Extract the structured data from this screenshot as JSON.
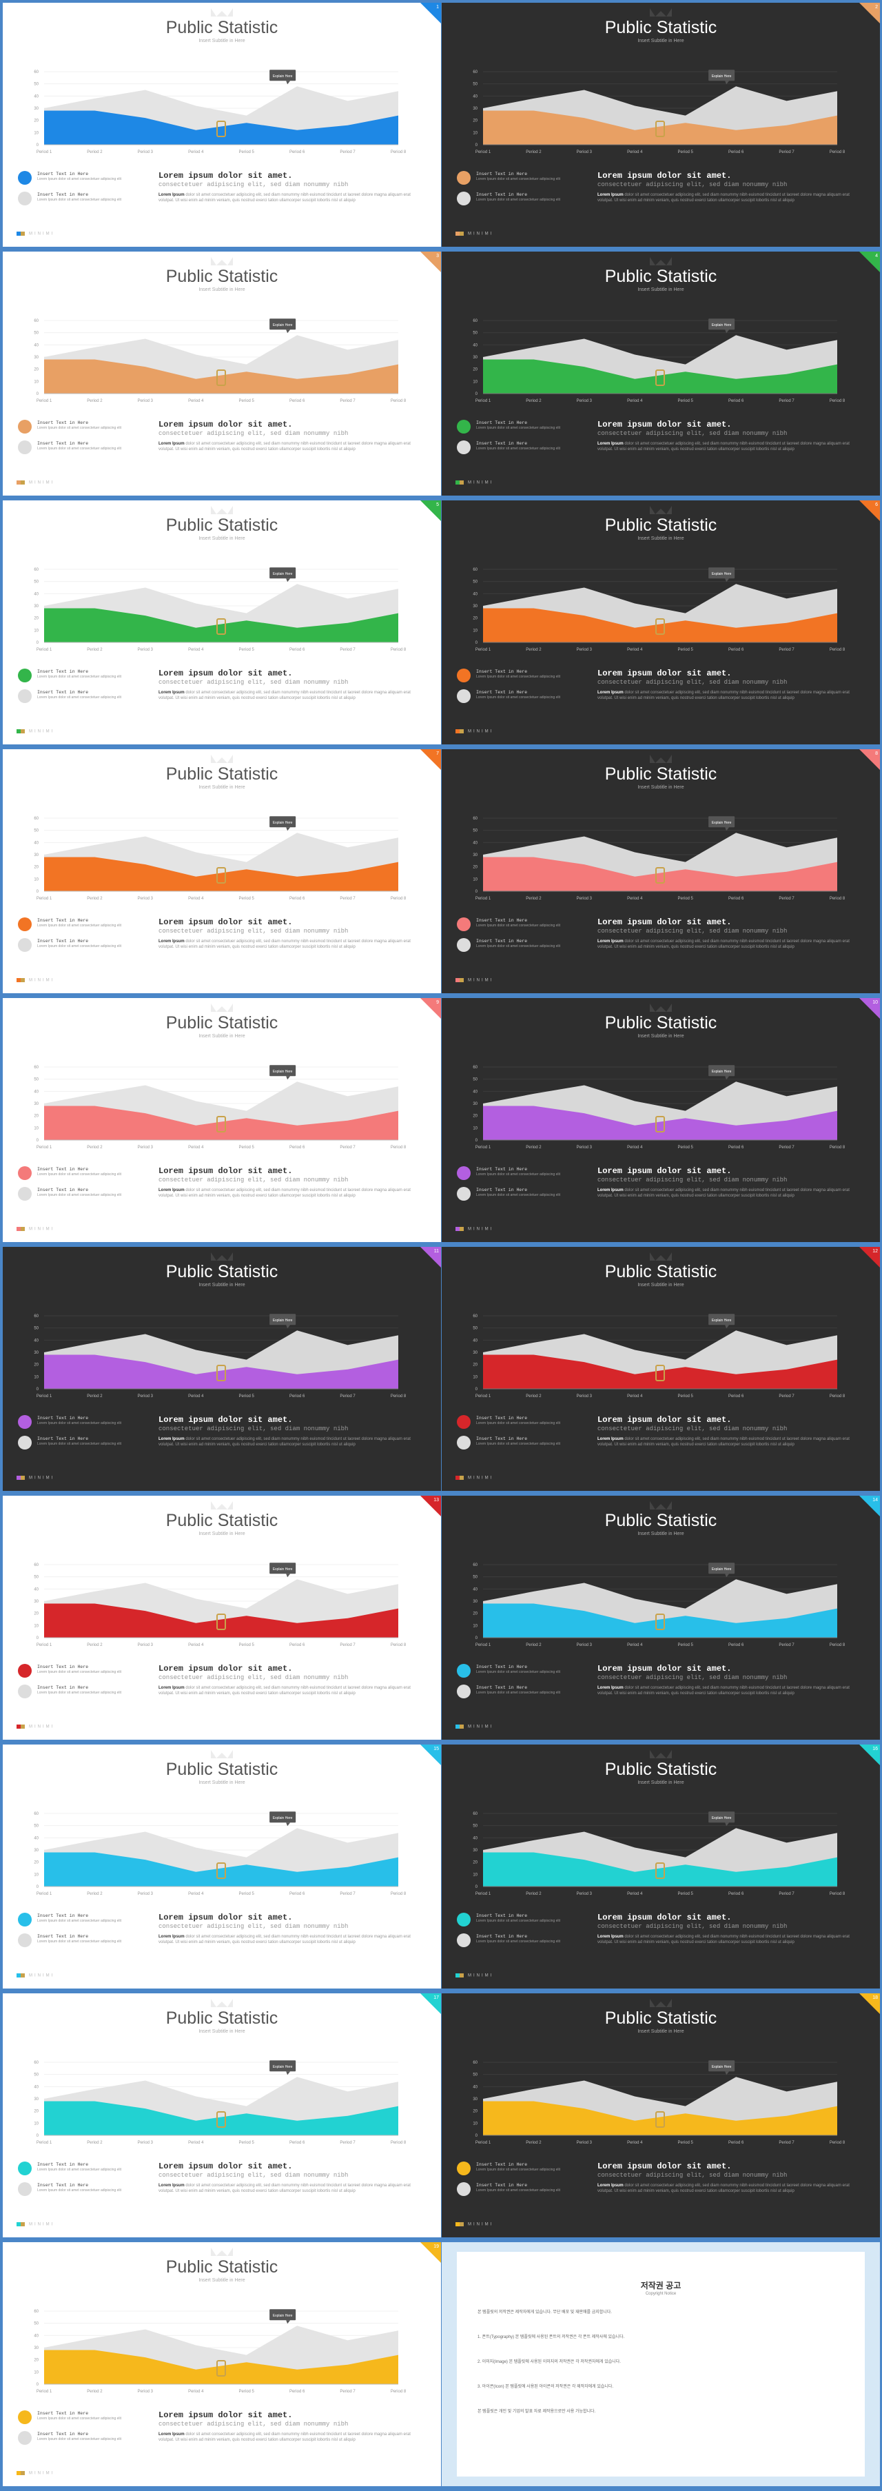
{
  "common": {
    "title": "Public Statistic",
    "subtitle": "Insert Subtitle in Here",
    "legend_1": "Insert Text in Here",
    "legend_2": "Insert Text in Here",
    "legend_sub": "Lorem Ipsum dolor sit amet consectetuer adipiscing elit",
    "body_heading": "Lorem ipsum dolor sit amet.",
    "body_sub": "consectetuer adipiscing elit, sed diam nonummy nibh",
    "body_bold": "Lorem Ipsum",
    "body_text": "dolor sit amet consectetuer adipiscing elit, sed diam nonummy nibh euismod tincidunt ut laoreet dolore magna aliquam erat volutpat. Ut wisi enim ad minim veniam, quis nostrud exerci tation ullamcorper suscipit lobortis nisl ut aliquip",
    "tooltip": "Explain Here",
    "logo": "MINIMI"
  },
  "chart_data": {
    "type": "area",
    "categories": [
      "Period 1",
      "Period 2",
      "Period 3",
      "Period 4",
      "Period 5",
      "Period 6",
      "Period 7",
      "Period 8"
    ],
    "ylim": [
      0,
      60
    ],
    "yticks": [
      0,
      10,
      20,
      30,
      40,
      50,
      60
    ],
    "series": [
      {
        "values": [
          30,
          38,
          45,
          32,
          24,
          48,
          36,
          44
        ]
      },
      {
        "values": [
          28,
          28,
          22,
          12,
          18,
          12,
          16,
          24
        ]
      }
    ]
  },
  "slides": [
    {
      "num": "1",
      "theme": "light",
      "accent": "#1e88e5"
    },
    {
      "num": "2",
      "theme": "dark",
      "accent": "#e8a064"
    },
    {
      "num": "3",
      "theme": "light",
      "accent": "#e8a064"
    },
    {
      "num": "4",
      "theme": "dark",
      "accent": "#33b54a"
    },
    {
      "num": "5",
      "theme": "light",
      "accent": "#33b54a"
    },
    {
      "num": "6",
      "theme": "dark",
      "accent": "#f27424"
    },
    {
      "num": "7",
      "theme": "light",
      "accent": "#f27424"
    },
    {
      "num": "8",
      "theme": "dark",
      "accent": "#f47a7a"
    },
    {
      "num": "9",
      "theme": "light",
      "accent": "#f47a7a"
    },
    {
      "num": "10",
      "theme": "dark",
      "accent": "#b35fe0"
    },
    {
      "num": "11",
      "theme": "dark",
      "accent": "#b35fe0"
    },
    {
      "num": "12",
      "theme": "dark",
      "accent": "#d6262a"
    },
    {
      "num": "13",
      "theme": "light",
      "accent": "#d6262a"
    },
    {
      "num": "14",
      "theme": "dark",
      "accent": "#28bfe9"
    },
    {
      "num": "15",
      "theme": "light",
      "accent": "#28bfe9"
    },
    {
      "num": "16",
      "theme": "dark",
      "accent": "#22d2d2"
    },
    {
      "num": "17",
      "theme": "light",
      "accent": "#22d2d2"
    },
    {
      "num": "18",
      "theme": "dark",
      "accent": "#f6b81c"
    },
    {
      "num": "19",
      "theme": "light",
      "accent": "#f6b81c"
    }
  ],
  "notice": {
    "title": "저작권 공고",
    "subtitle": "Copyright Notice",
    "paragraphs": [
      "본 템플릿의 저작권은 제작자에게 있습니다. 무단 배포 및 재판매를 금지합니다.",
      "1. 폰트(Typography) 본 템플릿에 사용된 폰트의 저작권은 각 폰트 제작사에 있습니다.",
      "2. 이미지(Image) 본 템플릿에 사용된 이미지의 저작권은 각 저작권자에게 있습니다.",
      "3. 아이콘(Icon) 본 템플릿에 사용된 아이콘의 저작권은 각 제작자에게 있습니다.",
      "본 템플릿은 개인 및 기업의 발표 자료 제작용으로만 사용 가능합니다."
    ]
  }
}
